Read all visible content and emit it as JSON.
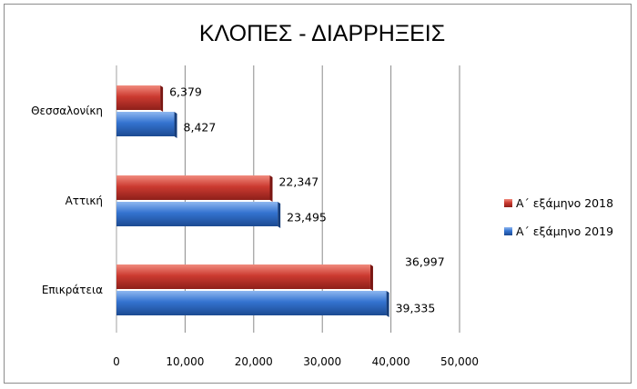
{
  "chart_data": {
    "type": "bar",
    "orientation": "horizontal",
    "title": "ΚΛΟΠΕΣ - ΔΙΑΡΡΗΞΕΙΣ",
    "categories": [
      "Θεσσαλονίκη",
      "Αττική",
      "Επικράτεια"
    ],
    "series": [
      {
        "name": "Α΄ εξάμηνο 2018",
        "values": [
          6379,
          22347,
          36997
        ],
        "labels": [
          "6,379",
          "22,347",
          "36,997"
        ],
        "color": "#c0392b"
      },
      {
        "name": "Α΄ εξάμηνο 2019",
        "values": [
          8427,
          23495,
          39335
        ],
        "labels": [
          "8,427",
          "23,495",
          "39,335"
        ],
        "color": "#2e6fcf"
      }
    ],
    "xlim": [
      0,
      50000
    ],
    "xticks": [
      0,
      10000,
      20000,
      30000,
      40000,
      50000
    ],
    "xtick_labels": [
      "0",
      "10,000",
      "20,000",
      "30,000",
      "40,000",
      "50,000"
    ],
    "grid": true,
    "legend_position": "right"
  }
}
